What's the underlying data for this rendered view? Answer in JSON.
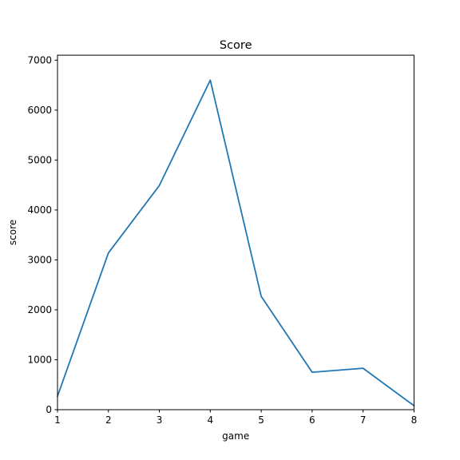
{
  "chart_data": {
    "type": "line",
    "title": "Score",
    "xlabel": "game",
    "ylabel": "score",
    "x": [
      1,
      2,
      3,
      4,
      5,
      6,
      7,
      8
    ],
    "series": [
      {
        "values": [
          270,
          3140,
          4490,
          6600,
          2270,
          750,
          830,
          80
        ]
      }
    ],
    "xlim": [
      1,
      8
    ],
    "ylim": [
      0,
      7100
    ],
    "xticks": [
      1,
      2,
      3,
      4,
      5,
      6,
      7,
      8
    ],
    "yticks": [
      0,
      1000,
      2000,
      3000,
      4000,
      5000,
      6000,
      7000
    ],
    "grid": false,
    "colors": {
      "line": "#1f77b4",
      "axes": "#000000",
      "background": "#ffffff"
    }
  }
}
